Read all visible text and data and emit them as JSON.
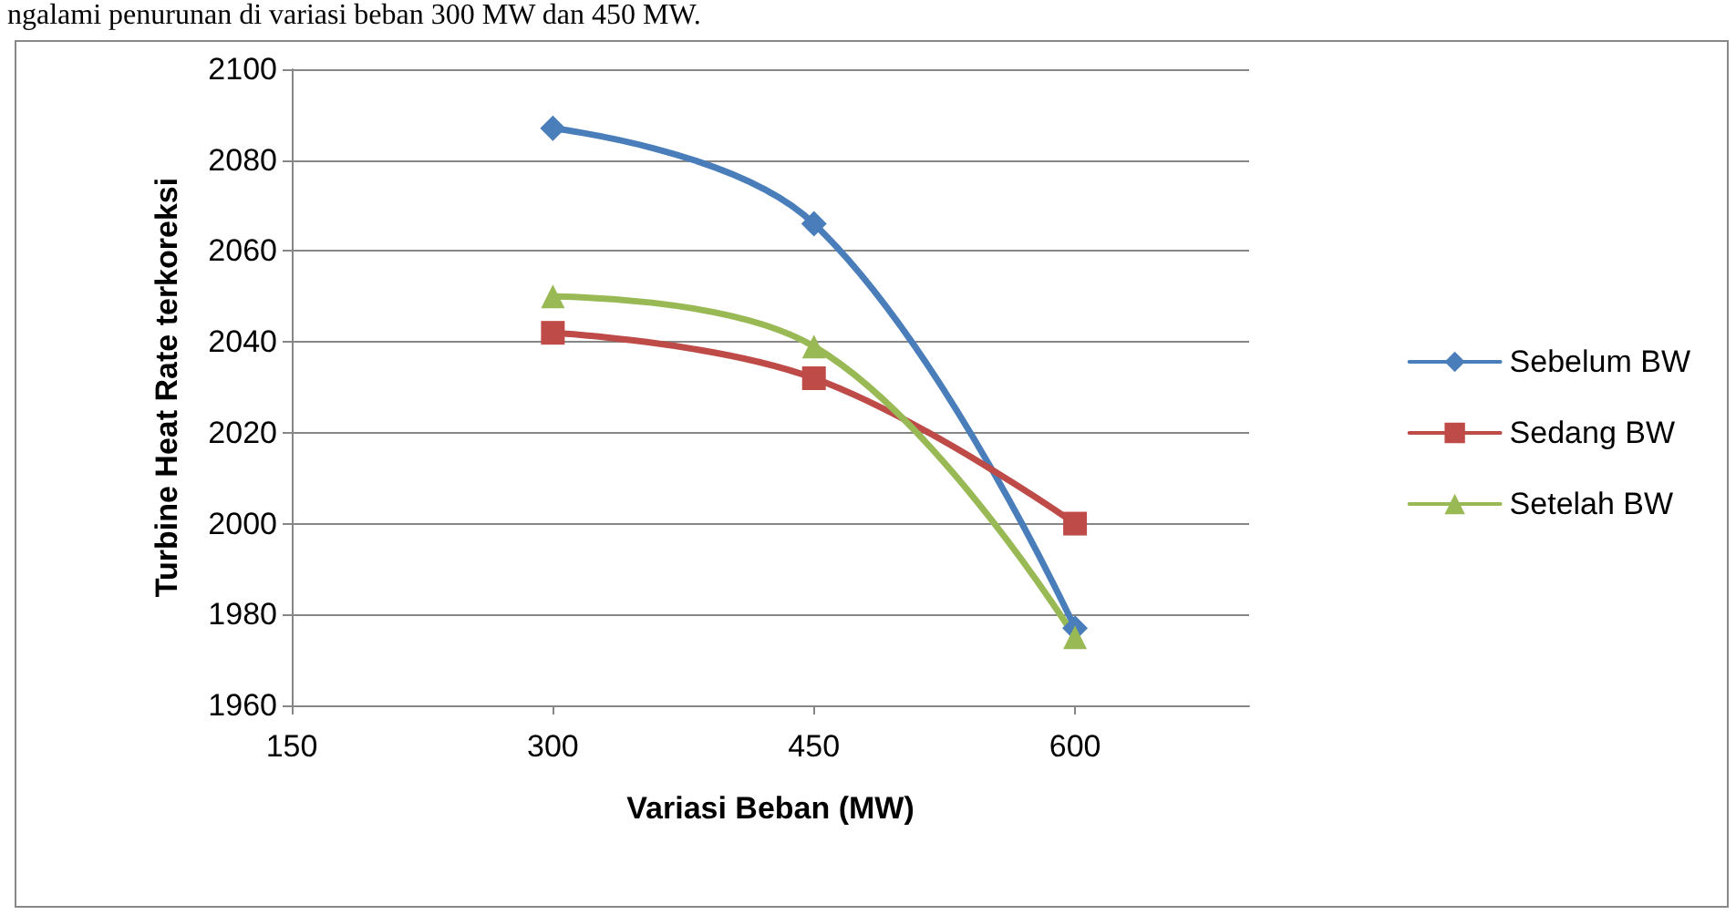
{
  "chart_data": {
    "type": "line",
    "xlabel": "Variasi Beban (MW)",
    "ylabel": "Turbine Heat Rate terkoreksi",
    "annotations": [
      "ngalami penurunan di variasi beban 300 MW dan 450 MW."
    ],
    "x": [
      300,
      450,
      600
    ],
    "series": [
      {
        "name": "Sebelum BW",
        "color": "#4a7ebb",
        "marker": "diamond",
        "values": [
          2087,
          2066,
          1977
        ]
      },
      {
        "name": "Sedang BW",
        "color": "#be4b48",
        "marker": "square",
        "values": [
          2042,
          2032,
          2000
        ]
      },
      {
        "name": "Setelah BW",
        "color": "#98b954",
        "marker": "triangle",
        "values": [
          2050,
          2039,
          1975
        ]
      }
    ],
    "xlim": [
      150,
      700
    ],
    "xticks": [
      150,
      300,
      450,
      600
    ],
    "ylim": [
      1960,
      2100
    ],
    "yticks": [
      1960,
      1980,
      2000,
      2020,
      2040,
      2060,
      2080,
      2100
    ],
    "grid": "y",
    "legend": "right",
    "line_style": "solid"
  }
}
